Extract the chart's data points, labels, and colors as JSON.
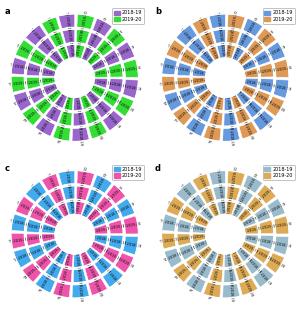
{
  "subplot_labels": [
    "a",
    "b",
    "c",
    "d"
  ],
  "subplot_colors": [
    [
      "#9966cc",
      "#33dd33"
    ],
    [
      "#6699dd",
      "#dd9955"
    ],
    [
      "#44aaee",
      "#ee55aa"
    ],
    [
      "#99bbcc",
      "#ddaa55"
    ]
  ],
  "legend_labels": [
    "2018-19",
    "2019-20"
  ],
  "treatments": [
    "T1",
    "T2",
    "T3",
    "T4",
    "T5",
    "T6",
    "T7",
    "T8",
    "T9",
    "T10"
  ],
  "n_treatments": 10,
  "segments_per_ring": 20,
  "ring_params": [
    {
      "r_in": 0.3,
      "r_out": 0.5
    },
    {
      "r_in": 0.53,
      "r_out": 0.73
    },
    {
      "r_in": 0.76,
      "r_out": 0.96
    }
  ],
  "values_ring0": [
    6.5,
    6.2,
    7.5,
    7.0,
    6.8,
    6.3,
    7.2,
    6.6,
    7.1,
    6.5,
    6.9,
    6.7,
    7.3,
    7.2,
    7.4,
    7.3,
    6.6,
    6.5,
    6.7,
    6.8
  ],
  "values_ring1": [
    12.5,
    11.8,
    14.5,
    13.5,
    13.0,
    12.0,
    13.8,
    12.5,
    13.5,
    12.8,
    13.2,
    12.7,
    14.0,
    13.8,
    14.2,
    14.0,
    12.6,
    12.4,
    12.9,
    13.0
  ],
  "values_ring2": [
    16.5,
    15.8,
    19.0,
    17.5,
    17.0,
    16.0,
    18.0,
    16.5,
    17.8,
    17.0,
    17.5,
    17.0,
    18.5,
    18.2,
    18.8,
    18.5,
    16.8,
    16.5,
    17.2,
    17.5
  ]
}
